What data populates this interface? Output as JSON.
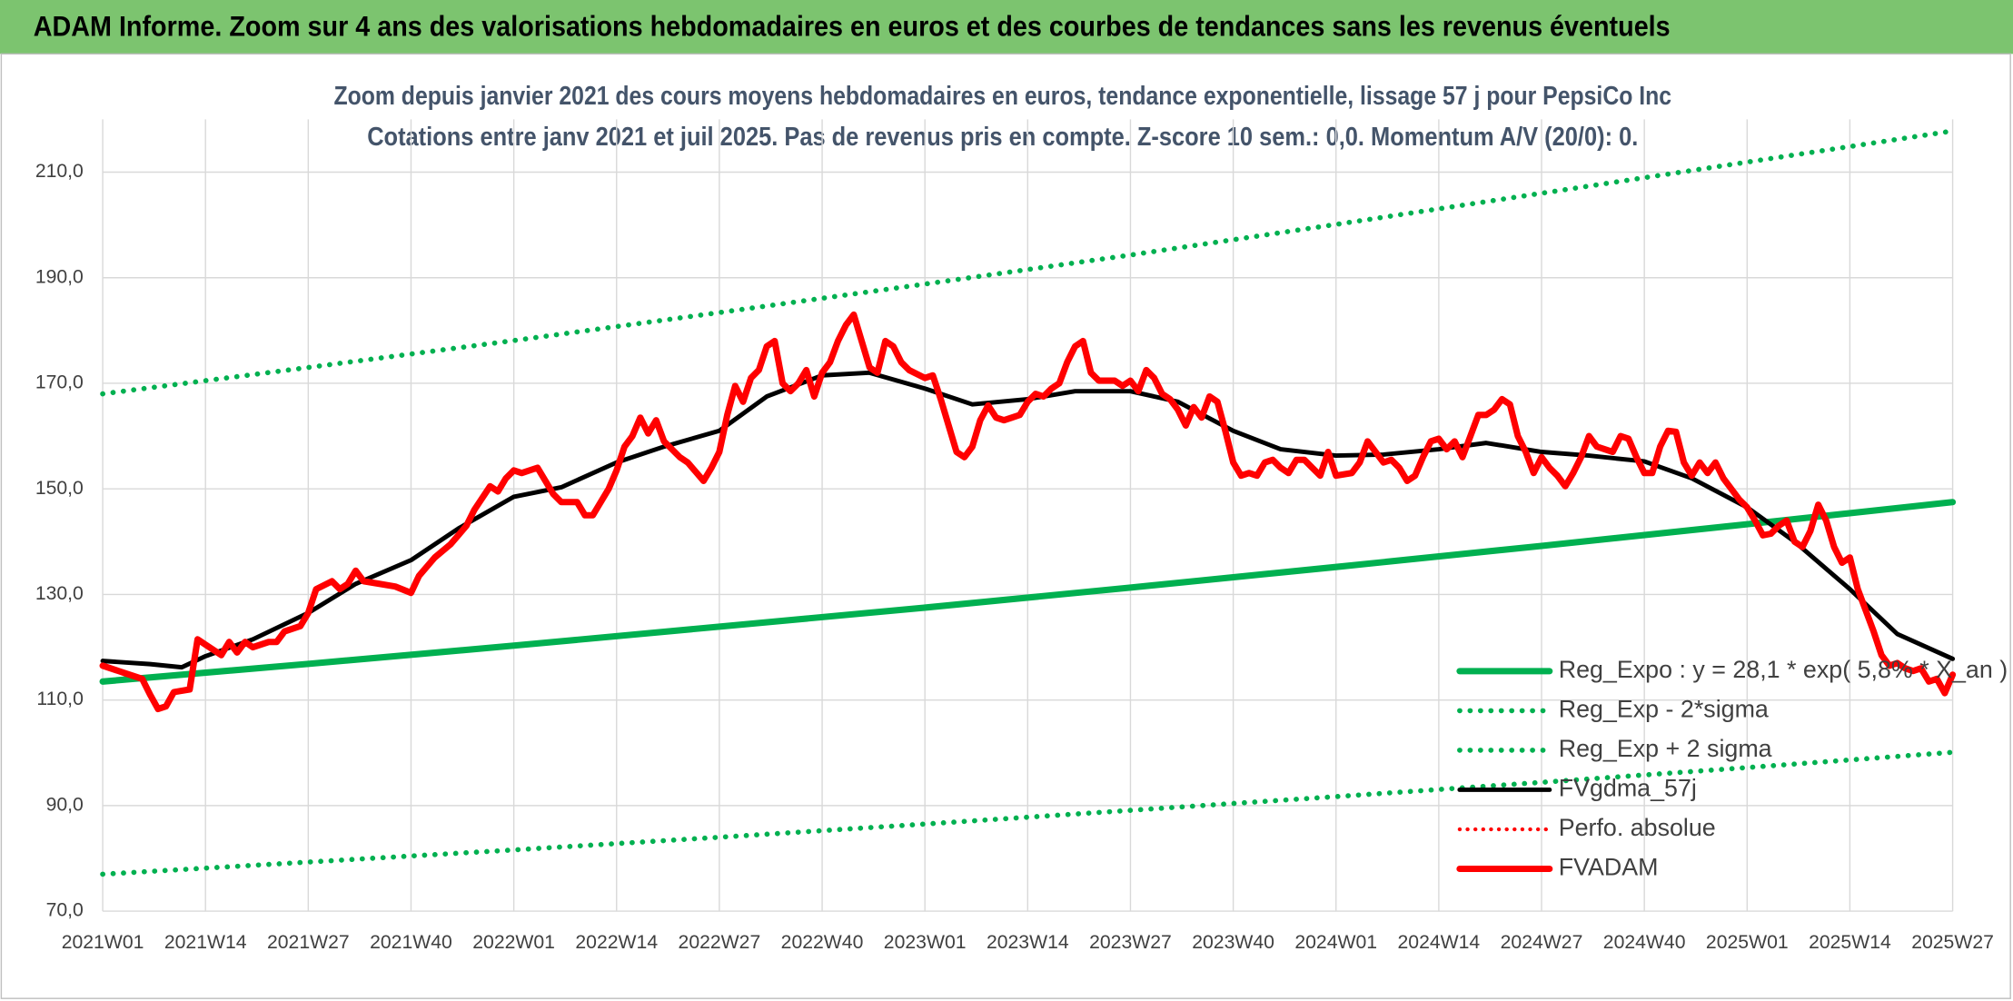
{
  "header": {
    "title": "ADAM Informe. Zoom sur 4 ans des valorisations hebdomadaires en euros et des courbes de tendances sans les revenus éventuels"
  },
  "chart_data": {
    "type": "line",
    "subtitle": [
      "Zoom depuis janvier 2021 des cours moyens hebdomadaires en euros, tendance exponentielle, lissage 57 j pour PepsiCo Inc",
      "Cotations entre janv 2021 et juil 2025. Pas de revenus pris en compte. Z-score 10 sem.: 0,0. Momentum A/V (20/0): 0."
    ],
    "xlim": [
      0,
      234
    ],
    "xticks": [
      {
        "value": 0,
        "label": "2021W01"
      },
      {
        "value": 13,
        "label": "2021W14"
      },
      {
        "value": 26,
        "label": "2021W27"
      },
      {
        "value": 39,
        "label": "2021W40"
      },
      {
        "value": 52,
        "label": "2022W01"
      },
      {
        "value": 65,
        "label": "2022W14"
      },
      {
        "value": 78,
        "label": "2022W27"
      },
      {
        "value": 91,
        "label": "2022W40"
      },
      {
        "value": 104,
        "label": "2023W01"
      },
      {
        "value": 117,
        "label": "2023W14"
      },
      {
        "value": 130,
        "label": "2023W27"
      },
      {
        "value": 143,
        "label": "2023W40"
      },
      {
        "value": 156,
        "label": "2024W01"
      },
      {
        "value": 169,
        "label": "2024W14"
      },
      {
        "value": 182,
        "label": "2024W27"
      },
      {
        "value": 195,
        "label": "2024W40"
      },
      {
        "value": 208,
        "label": "2025W01"
      },
      {
        "value": 221,
        "label": "2025W14"
      },
      {
        "value": 234,
        "label": "2025W27"
      }
    ],
    "ylim": [
      70,
      220
    ],
    "yticks": [
      {
        "value": 70,
        "label": "70,0"
      },
      {
        "value": 90,
        "label": "90,0"
      },
      {
        "value": 110,
        "label": "110,0"
      },
      {
        "value": 130,
        "label": "130,0"
      },
      {
        "value": 150,
        "label": "150,0"
      },
      {
        "value": 170,
        "label": "170,0"
      },
      {
        "value": 190,
        "label": "190,0"
      },
      {
        "value": 210,
        "label": "210,0"
      }
    ],
    "grid": true,
    "legend": "lower right",
    "series": [
      {
        "name": "Reg_Expo : y = 28,1 * exp( 5,8% *  X_an )",
        "color": "#00b050",
        "style": "solid",
        "width": 5,
        "x": [
          0,
          26,
          52,
          78,
          104,
          130,
          156,
          182,
          208,
          234
        ],
        "values": [
          113.5,
          116.85,
          120.3,
          123.9,
          127.5,
          131.3,
          135.2,
          139.2,
          143.3,
          147.5
        ]
      },
      {
        "name": "Reg_Exp - 2*sigma",
        "color": "#00b050",
        "style": "dotted",
        "width": 4,
        "x": [
          0,
          26,
          52,
          78,
          104,
          130,
          156,
          182,
          208,
          234
        ],
        "values": [
          77,
          79.3,
          81.6,
          84.0,
          86.5,
          89.1,
          91.7,
          94.4,
          97.2,
          100.1
        ]
      },
      {
        "name": "Reg_Exp + 2 sigma",
        "color": "#00b050",
        "style": "dotted",
        "width": 4,
        "x": [
          0,
          26,
          52,
          78,
          104,
          130,
          156,
          182,
          208,
          234
        ],
        "values": [
          168,
          173.0,
          178.1,
          183.4,
          188.8,
          194.3,
          200.1,
          206.0,
          211.9,
          217.8
        ]
      },
      {
        "name": "FVgdma_57j",
        "color": "#000000",
        "style": "solid",
        "width": 3.5,
        "x": [
          0,
          6,
          10,
          13,
          19,
          26,
          32,
          39,
          45,
          52,
          58,
          65,
          71,
          78,
          84,
          91,
          97,
          104,
          110,
          117,
          123,
          130,
          136,
          143,
          149,
          156,
          162,
          169,
          175,
          182,
          188,
          195,
          201,
          208,
          214,
          221,
          227,
          234
        ],
        "values": [
          117.4,
          116.8,
          116.2,
          118.3,
          121.5,
          126.5,
          132,
          136.5,
          142.5,
          148.5,
          150.3,
          155,
          158,
          161,
          167.5,
          171.5,
          172,
          169,
          166,
          167,
          168.5,
          168.5,
          166.5,
          161,
          157.5,
          156.3,
          156.5,
          157.5,
          158.7,
          157,
          156.3,
          155.2,
          152,
          146.5,
          140,
          131,
          122.5,
          117.8
        ]
      },
      {
        "name": "Perfo. absolue",
        "color": "#ff0000",
        "style": "dotted",
        "width": 3,
        "x": [],
        "values": []
      },
      {
        "name": "FVADAM",
        "color": "#ff0000",
        "style": "solid",
        "width": 5,
        "x": [
          0,
          2,
          3,
          5,
          6,
          7,
          8,
          9,
          11,
          12,
          13,
          15,
          16,
          17,
          18,
          19,
          21,
          22,
          23,
          25,
          26,
          27,
          29,
          30,
          31,
          32,
          33,
          35,
          37,
          39,
          40,
          42,
          44,
          46,
          47,
          49,
          50,
          51,
          52,
          53,
          55,
          56,
          57,
          58,
          60,
          61,
          62,
          64,
          65,
          66,
          67,
          68,
          69,
          70,
          71,
          73,
          74,
          76,
          77,
          78,
          79,
          80,
          81,
          82,
          83,
          84,
          85,
          86,
          87,
          88,
          89,
          90,
          91,
          92,
          93,
          94,
          95,
          96,
          97,
          98,
          99,
          100,
          101,
          102,
          104,
          105,
          106,
          107,
          108,
          109,
          110,
          111,
          112,
          113,
          114,
          115,
          116,
          117,
          118,
          119,
          120,
          121,
          122,
          123,
          124,
          125,
          126,
          128,
          129,
          130,
          131,
          132,
          133,
          134,
          135,
          136,
          137,
          138,
          139,
          140,
          141,
          142,
          143,
          144,
          145,
          146,
          147,
          148,
          149,
          150,
          151,
          152,
          153,
          154,
          155,
          156,
          158,
          159,
          160,
          161,
          162,
          163,
          164,
          165,
          166,
          167,
          168,
          169,
          170,
          171,
          172,
          173,
          174,
          175,
          176,
          177,
          178,
          179,
          180,
          181,
          182,
          183,
          184,
          185,
          186,
          187,
          188,
          189,
          190,
          191,
          192,
          193,
          194,
          195,
          196,
          197,
          198,
          199,
          200,
          201,
          202,
          203,
          204,
          205,
          206,
          207,
          208,
          209,
          210,
          211,
          212,
          213,
          214,
          215,
          216,
          217,
          218,
          219,
          220,
          221,
          222,
          223,
          224,
          225,
          226,
          227,
          228,
          229,
          230,
          231,
          232,
          233,
          234
        ],
        "values": [
          116.5,
          115.5,
          115,
          114,
          111,
          108.3,
          108.8,
          111.5,
          112,
          121.5,
          120.5,
          118.5,
          121,
          119,
          121,
          120,
          121,
          121,
          123,
          124,
          126.5,
          131,
          132.5,
          131,
          132,
          134.5,
          132.5,
          132,
          131.5,
          130.3,
          133.5,
          137,
          139.5,
          143,
          146,
          150.5,
          149.5,
          152,
          153.5,
          153,
          154,
          151.5,
          149,
          147.5,
          147.5,
          145,
          145,
          150,
          153.5,
          158,
          160,
          163.5,
          160.5,
          163,
          159,
          156,
          155,
          151.5,
          154,
          157,
          164,
          169.5,
          166.5,
          171,
          172.5,
          177,
          178,
          170,
          168.5,
          170,
          172.5,
          167.5,
          172,
          174,
          178,
          181,
          183,
          178,
          173,
          172,
          178,
          177,
          174,
          172.5,
          171,
          171.5,
          167,
          162,
          157,
          156,
          158,
          163,
          165.8,
          163.5,
          163,
          163.5,
          164,
          166.5,
          168,
          167.5,
          169,
          170,
          174,
          177,
          178,
          172,
          170.5,
          170.5,
          169.5,
          170.5,
          168.5,
          172.5,
          171,
          168,
          167,
          165,
          162,
          165.5,
          163.5,
          167.5,
          166.5,
          161,
          155,
          152.5,
          153,
          152.5,
          155,
          155.5,
          154,
          153,
          155.5,
          155.5,
          154,
          152.5,
          157,
          152.5,
          153,
          155,
          159,
          157,
          155,
          155.5,
          154,
          151.5,
          152.5,
          156,
          159,
          159.5,
          157.5,
          159,
          156,
          160,
          164,
          164,
          165,
          167,
          166,
          160,
          157,
          153,
          156,
          154,
          152.5,
          150.5,
          153,
          156,
          160,
          158,
          157.5,
          157,
          160,
          159.5,
          156,
          153,
          153,
          158,
          161,
          160.8,
          155,
          152.5,
          155,
          153,
          155,
          152,
          150,
          148,
          146.5,
          144,
          141.2,
          141.5,
          143,
          144,
          140,
          139,
          142,
          147,
          144,
          139,
          136,
          137,
          131,
          127,
          123,
          118.5,
          116.5,
          117,
          116,
          115.5,
          116,
          113.5,
          114,
          111.3,
          114.8
        ]
      }
    ]
  }
}
